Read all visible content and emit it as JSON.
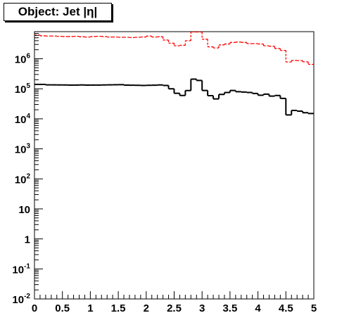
{
  "title": "Object: Jet |η|",
  "chart_data": {
    "type": "line",
    "style": "step histogram",
    "title": "Object: Jet |η|",
    "xlabel": "",
    "ylabel": "",
    "xlim": [
      0,
      5
    ],
    "ylim": [
      0.01,
      8000000
    ],
    "yscale": "log",
    "grid": false,
    "legend": "none",
    "x_ticks": [
      {
        "value": 0,
        "label": "0"
      },
      {
        "value": 0.5,
        "label": "0.5"
      },
      {
        "value": 1,
        "label": "1"
      },
      {
        "value": 1.5,
        "label": "1.5"
      },
      {
        "value": 2,
        "label": "2"
      },
      {
        "value": 2.5,
        "label": "2.5"
      },
      {
        "value": 3,
        "label": "3"
      },
      {
        "value": 3.5,
        "label": "3.5"
      },
      {
        "value": 4,
        "label": "4"
      },
      {
        "value": 4.5,
        "label": "4.5"
      },
      {
        "value": 5,
        "label": "5"
      }
    ],
    "y_ticks": [
      {
        "value": 0.01,
        "base": "10",
        "exp": "-2"
      },
      {
        "value": 0.1,
        "base": "10",
        "exp": "-1"
      },
      {
        "value": 1,
        "base": "1",
        "exp": ""
      },
      {
        "value": 10,
        "base": "10",
        "exp": ""
      },
      {
        "value": 100,
        "base": "10",
        "exp": "2"
      },
      {
        "value": 1000,
        "base": "10",
        "exp": "3"
      },
      {
        "value": 10000,
        "base": "10",
        "exp": "4"
      },
      {
        "value": 100000,
        "base": "10",
        "exp": "5"
      },
      {
        "value": 1000000,
        "base": "10",
        "exp": "6"
      }
    ],
    "bin_edges": [
      0,
      0.1,
      0.2,
      0.3,
      0.4,
      0.5,
      0.6,
      0.7,
      0.8,
      0.9,
      1.0,
      1.1,
      1.2,
      1.3,
      1.4,
      1.5,
      1.6,
      1.7,
      1.8,
      1.9,
      2.0,
      2.1,
      2.2,
      2.3,
      2.4,
      2.5,
      2.6,
      2.7,
      2.8,
      2.9,
      3.0,
      3.1,
      3.2,
      3.3,
      3.4,
      3.5,
      3.6,
      3.7,
      3.8,
      3.9,
      4.0,
      4.1,
      4.2,
      4.3,
      4.4,
      4.5,
      4.6,
      4.7,
      4.8,
      4.9,
      5.0
    ],
    "series": [
      {
        "color": "#ff0000",
        "dashed": true,
        "values": [
          6200000,
          5800000,
          5700000,
          5700000,
          5600000,
          5500000,
          5500000,
          5600000,
          5400000,
          5300000,
          5500000,
          5600000,
          5500000,
          5300000,
          5300000,
          5200000,
          5200000,
          5100000,
          5200000,
          5300000,
          5700000,
          5300000,
          5400000,
          4200000,
          3300000,
          2700000,
          2800000,
          4000000,
          7800000,
          7800000,
          4500000,
          2500000,
          2300000,
          2900000,
          3100000,
          3500000,
          3600000,
          3500000,
          3200000,
          3200000,
          3100000,
          2700000,
          2600000,
          2200000,
          1900000,
          780000,
          880000,
          870000,
          790000,
          650000
        ]
      },
      {
        "color": "#000000",
        "dashed": false,
        "values": [
          140000,
          140000,
          135000,
          135000,
          134000,
          134000,
          133000,
          133000,
          134000,
          133000,
          133000,
          133000,
          134000,
          135000,
          136000,
          137000,
          133000,
          132000,
          131000,
          129000,
          131000,
          132000,
          134000,
          129000,
          100000,
          71000,
          60000,
          87000,
          210000,
          190000,
          88000,
          59000,
          46000,
          65000,
          75000,
          88000,
          80000,
          78000,
          75000,
          70000,
          61000,
          66000,
          57000,
          60000,
          48000,
          13500,
          19000,
          18000,
          16000,
          15000
        ]
      }
    ]
  }
}
